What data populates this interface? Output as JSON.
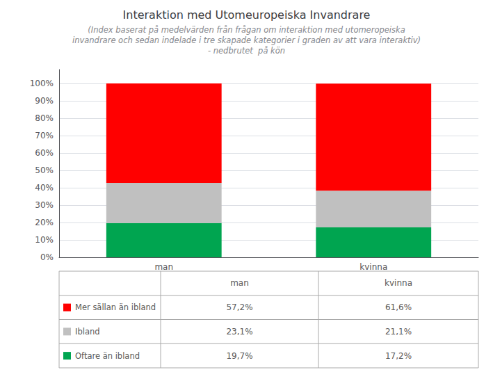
{
  "chart_data": {
    "type": "bar",
    "title": "Interaktion med Utomeuropeiska Invandrare",
    "subtitle": [
      "(Index baserat på medelvärden från frågan om interaktion med utomeropeiska",
      "invandrare och sedan indelade i tre skapade kategorier i graden av att vara interaktiv)",
      "- nedbrutet  på kön"
    ],
    "categories": [
      "man",
      "kvinna"
    ],
    "series": [
      {
        "name": "Mer sällan än ibland",
        "color": "#FF0000",
        "values": [
          57.2,
          61.6
        ],
        "value_labels": [
          "57,2%",
          "61,6%"
        ]
      },
      {
        "name": "Ibland",
        "color": "#C0C0C0",
        "values": [
          23.1,
          21.1
        ],
        "value_labels": [
          "23,1%",
          "21,1%"
        ]
      },
      {
        "name": "Oftare än ibland",
        "color": "#00A550",
        "values": [
          19.7,
          17.2
        ],
        "value_labels": [
          "19,7%",
          "17,2%"
        ]
      }
    ],
    "stacked": true,
    "ylim": [
      0,
      108
    ],
    "yticks": [
      {
        "value": 0,
        "label": "0%"
      },
      {
        "value": 10,
        "label": "10%"
      },
      {
        "value": 20,
        "label": "20%"
      },
      {
        "value": 30,
        "label": "30%"
      },
      {
        "value": 40,
        "label": "40%"
      },
      {
        "value": 50,
        "label": "50%"
      },
      {
        "value": 60,
        "label": "60%"
      },
      {
        "value": 70,
        "label": "70%"
      },
      {
        "value": 80,
        "label": "80%"
      },
      {
        "value": 90,
        "label": "90%"
      },
      {
        "value": 100,
        "label": "100%"
      }
    ],
    "grid": true,
    "legend": "bottom"
  }
}
